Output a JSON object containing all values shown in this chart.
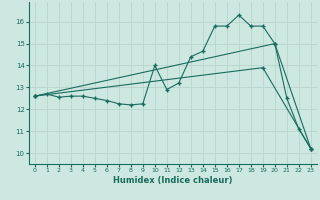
{
  "title": "",
  "xlabel": "Humidex (Indice chaleur)",
  "bg_color": "#cce8e0",
  "grid_color": "#b8d4cc",
  "line_color": "#1a6b5e",
  "xlim": [
    -0.5,
    23.5
  ],
  "ylim": [
    9.5,
    16.9
  ],
  "xticks": [
    0,
    1,
    2,
    3,
    4,
    5,
    6,
    7,
    8,
    9,
    10,
    11,
    12,
    13,
    14,
    15,
    16,
    17,
    18,
    19,
    20,
    21,
    22,
    23
  ],
  "yticks": [
    10,
    11,
    12,
    13,
    14,
    15,
    16
  ],
  "line1_x": [
    0,
    1,
    2,
    3,
    4,
    5,
    6,
    7,
    8,
    9,
    10,
    11,
    12,
    13,
    14,
    15,
    16,
    17,
    18,
    19,
    20,
    21,
    22,
    23
  ],
  "line1_y": [
    12.6,
    12.7,
    12.55,
    12.6,
    12.6,
    12.5,
    12.4,
    12.25,
    12.2,
    12.25,
    14.0,
    12.9,
    13.2,
    14.4,
    14.65,
    15.8,
    15.8,
    16.3,
    15.8,
    15.8,
    15.0,
    12.5,
    11.1,
    10.2
  ],
  "line2_x": [
    0,
    20,
    23
  ],
  "line2_y": [
    12.6,
    15.0,
    10.2
  ],
  "line3_x": [
    0,
    19,
    23
  ],
  "line3_y": [
    12.6,
    13.9,
    10.2
  ],
  "marker": "+"
}
